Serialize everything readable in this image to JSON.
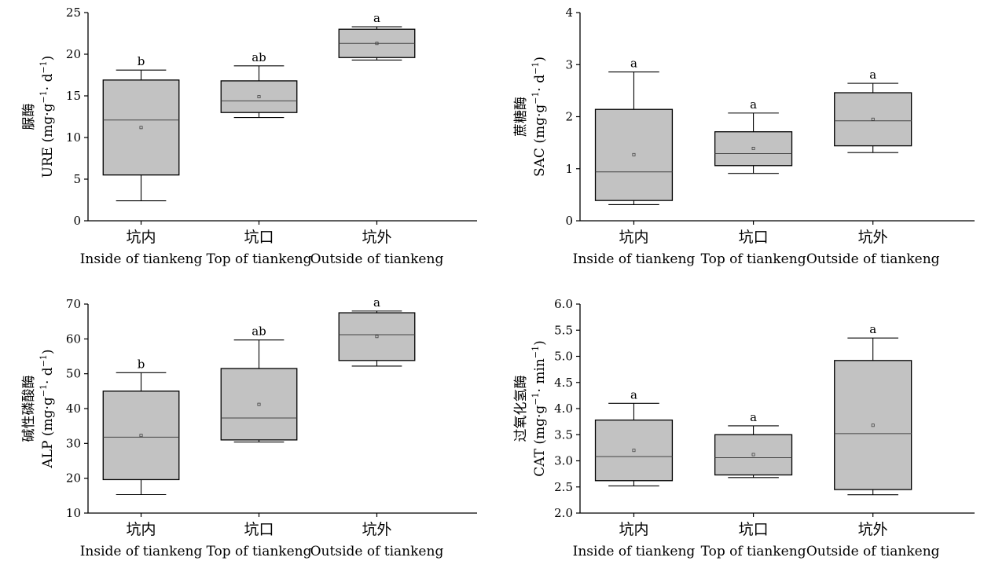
{
  "chart_data": [
    {
      "type": "box",
      "ylabel_cn": "脲酶",
      "ylabel_en": "URE (mg·g",
      "ylabel_unit": "· d",
      "ylim": [
        0,
        25
      ],
      "yticks": [
        "0",
        "5",
        "10",
        "15",
        "20",
        "25"
      ],
      "categories": [
        {
          "cn": "坑内",
          "en": "Inside of tiankeng"
        },
        {
          "cn": "坑口",
          "en": "Top of tiankeng"
        },
        {
          "cn": "坑外",
          "en": "Outside of tiankeng"
        }
      ],
      "boxes": [
        {
          "min": 2.4,
          "q1": 5.5,
          "median": 12.1,
          "q3": 16.9,
          "max": 18.1,
          "mean": 11.2,
          "letter": "b"
        },
        {
          "min": 12.4,
          "q1": 13.0,
          "median": 14.4,
          "q3": 16.8,
          "max": 18.6,
          "mean": 14.9,
          "letter": "ab"
        },
        {
          "min": 19.3,
          "q1": 19.6,
          "median": 21.3,
          "q3": 23.0,
          "max": 23.3,
          "mean": 21.3,
          "letter": "a"
        }
      ]
    },
    {
      "type": "box",
      "ylabel_cn": "蔗糖酶",
      "ylabel_en": "SAC (mg·g",
      "ylabel_unit": "· d",
      "ylim": [
        0,
        4
      ],
      "yticks": [
        "0",
        "1",
        "2",
        "3",
        "4"
      ],
      "categories": [
        {
          "cn": "坑内",
          "en": "Inside of tiankeng"
        },
        {
          "cn": "坑口",
          "en": "Top of tiankeng"
        },
        {
          "cn": "坑外",
          "en": "Outside of tiankeng"
        }
      ],
      "boxes": [
        {
          "min": 0.31,
          "q1": 0.39,
          "median": 0.94,
          "q3": 2.14,
          "max": 2.86,
          "mean": 1.27,
          "letter": "a"
        },
        {
          "min": 0.91,
          "q1": 1.06,
          "median": 1.29,
          "q3": 1.71,
          "max": 2.07,
          "mean": 1.39,
          "letter": "a"
        },
        {
          "min": 1.31,
          "q1": 1.44,
          "median": 1.92,
          "q3": 2.46,
          "max": 2.64,
          "mean": 1.95,
          "letter": "a"
        }
      ]
    },
    {
      "type": "box",
      "ylabel_cn": "碱性磷酸酶",
      "ylabel_en": "ALP (mg·g",
      "ylabel_unit": "· d",
      "ylim": [
        10,
        70
      ],
      "yticks": [
        "10",
        "20",
        "30",
        "40",
        "50",
        "60",
        "70"
      ],
      "categories": [
        {
          "cn": "坑内",
          "en": "Inside of tiankeng"
        },
        {
          "cn": "坑口",
          "en": "Top of tiankeng"
        },
        {
          "cn": "坑外",
          "en": "Outside of tiankeng"
        }
      ],
      "boxes": [
        {
          "min": 15.3,
          "q1": 19.6,
          "median": 31.8,
          "q3": 45.0,
          "max": 50.3,
          "mean": 32.3,
          "letter": "b"
        },
        {
          "min": 30.4,
          "q1": 31.0,
          "median": 37.3,
          "q3": 51.5,
          "max": 59.7,
          "mean": 41.2,
          "letter": "ab"
        },
        {
          "min": 52.2,
          "q1": 53.8,
          "median": 61.2,
          "q3": 67.5,
          "max": 68.0,
          "mean": 60.7,
          "letter": "a"
        }
      ]
    },
    {
      "type": "box",
      "ylabel_cn": "过氧化氢酶",
      "ylabel_en": "CAT (mg·g",
      "ylabel_unit": "· min",
      "ylim": [
        2.0,
        6.0
      ],
      "yticks": [
        "2.0",
        "2.5",
        "3.0",
        "3.5",
        "4.0",
        "4.5",
        "5.0",
        "5.5",
        "6.0"
      ],
      "categories": [
        {
          "cn": "坑内",
          "en": "Inside of tiankeng"
        },
        {
          "cn": "坑口",
          "en": "Top of tiankeng"
        },
        {
          "cn": "坑外",
          "en": "Outside of tiankeng"
        }
      ],
      "boxes": [
        {
          "min": 2.52,
          "q1": 2.62,
          "median": 3.08,
          "q3": 3.78,
          "max": 4.1,
          "mean": 3.2,
          "letter": "a"
        },
        {
          "min": 2.68,
          "q1": 2.73,
          "median": 3.06,
          "q3": 3.5,
          "max": 3.67,
          "mean": 3.12,
          "letter": "a"
        },
        {
          "min": 2.35,
          "q1": 2.45,
          "median": 3.52,
          "q3": 4.92,
          "max": 5.35,
          "mean": 3.68,
          "letter": "a"
        }
      ]
    }
  ],
  "colors": {
    "box_fill": "#c2c2c2",
    "stroke": "#000000"
  }
}
